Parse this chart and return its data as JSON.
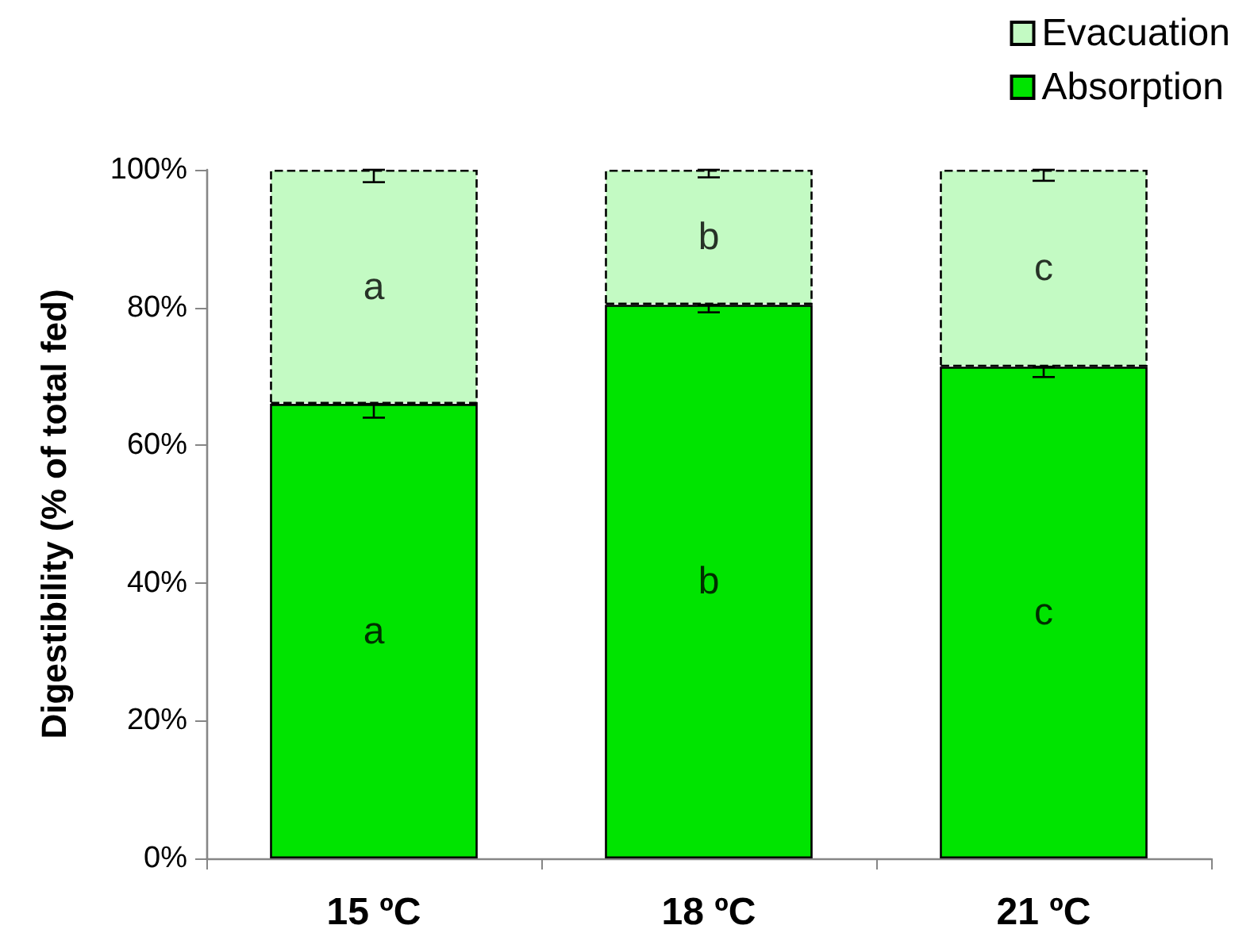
{
  "chart_data": {
    "type": "bar",
    "stacked": true,
    "ylabel": "Digestibility (% of total fed)",
    "categories": [
      "15 ºC",
      "18 ºC",
      "21 ºC"
    ],
    "series": [
      {
        "name": "Absorption",
        "color": "#00e400",
        "line_style": "solid",
        "values": [
          66.0,
          80.4,
          71.4
        ],
        "errors": [
          [
            64.0,
            66.0
          ],
          [
            79.3,
            80.4
          ],
          [
            69.9,
            71.4
          ]
        ]
      },
      {
        "name": "Evacuation",
        "color": "#c3fac3",
        "line_style": "dashed",
        "values": [
          34.0,
          19.6,
          28.6
        ],
        "errors": [
          [
            98.2,
            100
          ],
          [
            98.9,
            100
          ],
          [
            98.4,
            100
          ]
        ]
      }
    ],
    "ylim": [
      0,
      100
    ],
    "yticks": [
      {
        "value": 0,
        "label": "0%"
      },
      {
        "value": 20,
        "label": "20%"
      },
      {
        "value": 40,
        "label": "40%"
      },
      {
        "value": 60,
        "label": "60%"
      },
      {
        "value": 80,
        "label": "80%"
      },
      {
        "value": 100,
        "label": "100%"
      }
    ],
    "grid": false,
    "legend": "top right",
    "annotations": [
      "a",
      "a",
      "b",
      "b",
      "c",
      "c"
    ]
  }
}
